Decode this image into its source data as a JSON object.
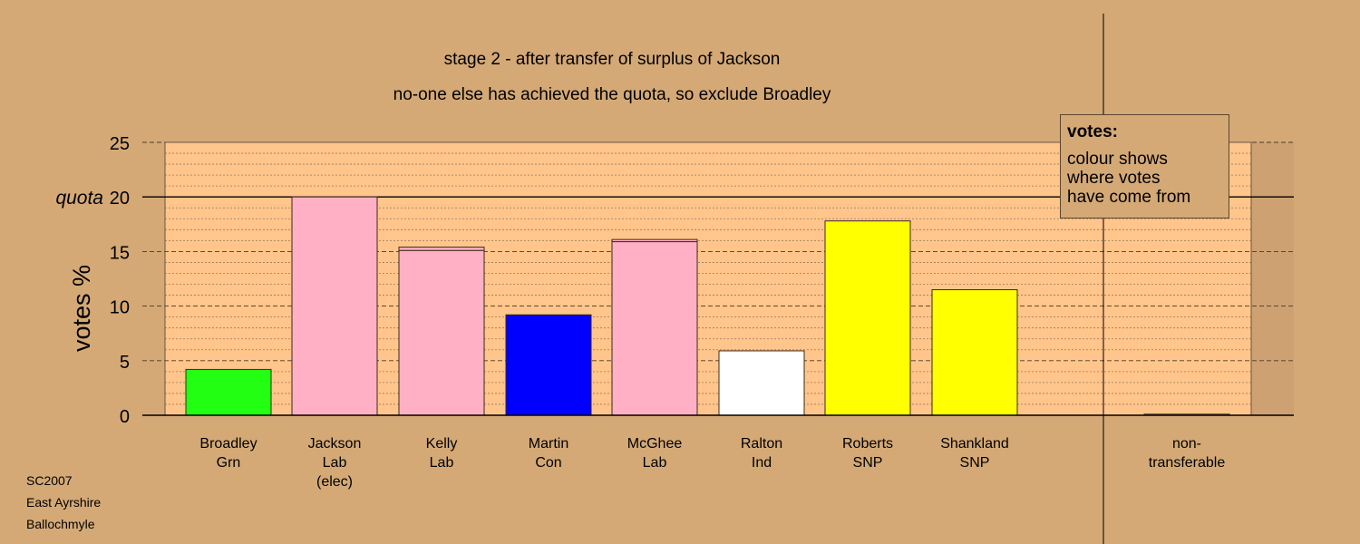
{
  "chart_data": {
    "type": "bar",
    "title": "stage 2 - after transfer of surplus of Jackson",
    "subtitle": "no-one else has achieved the quota, so exclude Broadley",
    "ylabel": "votes %",
    "ylim": [
      0,
      25
    ],
    "yticks": [
      "0",
      "5",
      "10",
      "15",
      "20",
      "25"
    ],
    "quota_label": "quota",
    "quota_value": 20,
    "categories": [
      [
        "Broadley",
        "Grn"
      ],
      [
        "Jackson",
        "Lab",
        "(elec)"
      ],
      [
        "Kelly",
        "Lab"
      ],
      [
        "Martin",
        "Con"
      ],
      [
        "McGhee",
        "Lab"
      ],
      [
        "Ralton",
        "Ind"
      ],
      [
        "Roberts",
        "SNP"
      ],
      [
        "Shankland",
        "SNP"
      ],
      [
        "non-",
        "transferable"
      ]
    ],
    "values": [
      4.2,
      20.0,
      15.4,
      9.2,
      16.1,
      5.9,
      17.8,
      11.5,
      0.1
    ],
    "transfers": [
      0,
      0,
      0.3,
      0,
      0.2,
      0,
      0,
      0,
      0.1
    ],
    "colors": [
      "#22FF12",
      "#FFB0C4",
      "#FFB0C4",
      "#0000FF",
      "#FFB0C4",
      "#FFFFFF",
      "#FFFF00",
      "#FFFF00",
      "#FFB0C4"
    ],
    "transfer_color": "#FFB0C4",
    "grid": true,
    "legend": {
      "position": "top-right",
      "title": "votes:",
      "lines": [
        "colour shows",
        "where votes",
        "have come from"
      ]
    }
  },
  "footer": [
    "SC2007",
    "East Ayrshire",
    "Ballochmyle"
  ]
}
